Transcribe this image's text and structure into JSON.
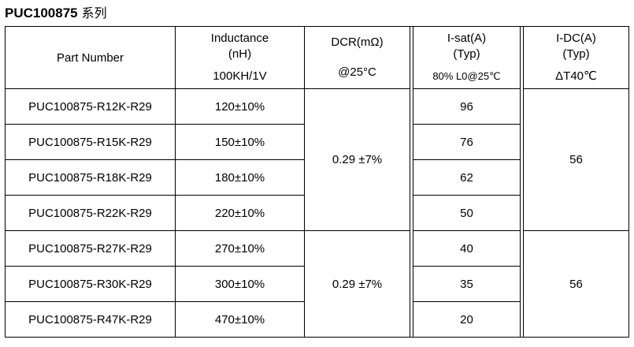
{
  "title": {
    "part": "PUC100875",
    "suffix": "系列"
  },
  "headers": {
    "part_number": "Part Number",
    "inductance": {
      "line1": "Inductance",
      "line2": "(nH)",
      "note": "100KH/1V"
    },
    "dcr": {
      "line1": "DCR(mΩ)",
      "note": "@25°C"
    },
    "isat": {
      "line1": "I-sat(A)",
      "line2": "(Typ)",
      "note": "80% L0@25℃"
    },
    "idc": {
      "line1": "I-DC(A)",
      "line2": "(Typ)",
      "note": "ΔT40℃"
    }
  },
  "rows": [
    {
      "part": "PUC100875-R12K-R29",
      "inductance": "120±10%",
      "isat": "96"
    },
    {
      "part": "PUC100875-R15K-R29",
      "inductance": "150±10%",
      "isat": "76"
    },
    {
      "part": "PUC100875-R18K-R29",
      "inductance": "180±10%",
      "isat": "62"
    },
    {
      "part": "PUC100875-R22K-R29",
      "inductance": "220±10%",
      "isat": "50"
    },
    {
      "part": "PUC100875-R27K-R29",
      "inductance": "270±10%",
      "isat": "40"
    },
    {
      "part": "PUC100875-R30K-R29",
      "inductance": "300±10%",
      "isat": "35"
    },
    {
      "part": "PUC100875-R47K-R29",
      "inductance": "470±10%",
      "isat": "20"
    }
  ],
  "groups": [
    {
      "dcr": "0.29 ±7%",
      "idc": "56"
    },
    {
      "dcr": "0.29 ±7%",
      "idc": "56"
    }
  ]
}
